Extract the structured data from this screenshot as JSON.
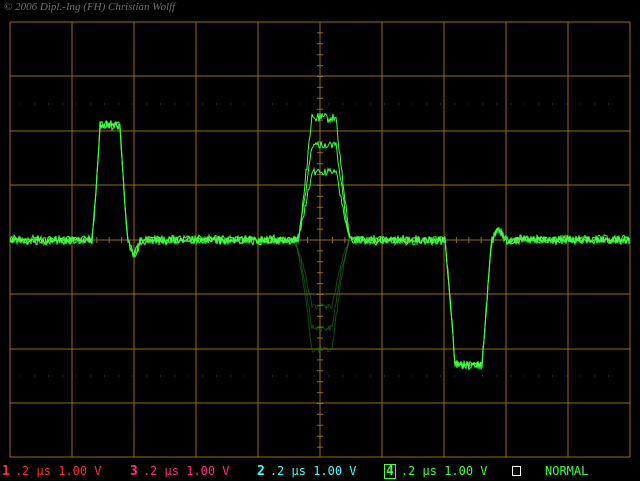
{
  "copyright": "© 2006 Dipl.-Ing (FH) Christian Wolff",
  "colors": {
    "grid": "#9a6a10",
    "trace": "#40ff40",
    "trace_ghost": "#1f7a1f",
    "ch1": "#ff3030",
    "ch2": "#40ffff",
    "ch3": "#ff3080",
    "ch4": "#40ff40"
  },
  "channels": [
    {
      "num": "1",
      "timebase": ".2 µs",
      "volts": "1.00 V"
    },
    {
      "num": "3",
      "timebase": ".2 µs",
      "volts": "1.00 V"
    },
    {
      "num": "2",
      "timebase": ".2 µs",
      "volts": "1.00 V"
    },
    {
      "num": "4",
      "timebase": ".2 µs",
      "volts": "1.00 V"
    }
  ],
  "trigger_icon": "trigger-square-icon",
  "mode": "NORMAL"
}
